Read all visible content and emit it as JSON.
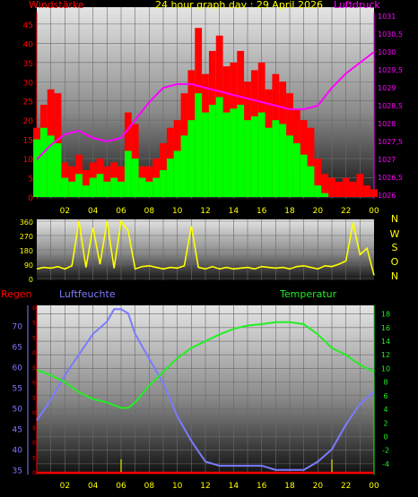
{
  "header": {
    "left_label": "Windstärke",
    "title": "24 hour graph day : 29 April 2026",
    "right_label": "Luftdruck"
  },
  "colors": {
    "background": "#000000",
    "wind_gust": "#ff0000",
    "wind_avg": "#00ff00",
    "pressure": "#ff00ff",
    "direction": "#ffff00",
    "humidity": "#7b7bff",
    "temperature": "#22ee22",
    "rain": "#ff0000",
    "rain_ticks": "#cccc00"
  },
  "chart_data": [
    {
      "type": "bar",
      "panel": "wind_pressure",
      "xlabel": "",
      "x_ticks": [
        "02",
        "04",
        "06",
        "08",
        "10",
        "12",
        "14",
        "16",
        "18",
        "20",
        "22",
        "00"
      ],
      "left_axis": {
        "label": "Windstärke",
        "ticks": [
          0,
          5,
          10,
          15,
          20,
          25,
          30,
          35,
          40,
          45
        ],
        "ylim": [
          0,
          48
        ]
      },
      "right_axis": {
        "label": "Luftdruck",
        "ticks": [
          "1026",
          "1026,5",
          "1027",
          "1027,5",
          "1028",
          "1028,5",
          "1029",
          "1029,5",
          "1030",
          "1030,5",
          "1031"
        ],
        "ylim": [
          1025.95,
          1031.1
        ]
      },
      "series": [
        {
          "kind": "gust",
          "x": [
            0,
            0.5,
            1,
            1.5,
            2,
            2.5,
            3,
            3.5,
            4,
            4.5,
            5,
            5.5,
            6,
            6.5,
            7,
            7.5,
            8,
            8.5,
            9,
            9.5,
            10,
            10.5,
            11,
            11.5,
            12,
            12.5,
            13,
            13.5,
            14,
            14.5,
            15,
            15.5,
            16,
            16.5,
            17,
            17.5,
            18,
            18.5,
            19,
            19.5,
            20,
            20.5,
            21,
            21.5,
            22,
            22.5,
            23,
            23.5,
            24
          ],
          "values": [
            18,
            24,
            28,
            27,
            9,
            8,
            11,
            7,
            9,
            10,
            8,
            9,
            8,
            22,
            19,
            8,
            8,
            10,
            14,
            18,
            20,
            27,
            33,
            44,
            32,
            38,
            42,
            34,
            35,
            38,
            30,
            33,
            35,
            28,
            32,
            30,
            27,
            23,
            20,
            18,
            10,
            6,
            5,
            4,
            5,
            4,
            6,
            3,
            2
          ]
        },
        {
          "kind": "average",
          "x": [
            0,
            0.5,
            1,
            1.5,
            2,
            2.5,
            3,
            3.5,
            4,
            4.5,
            5,
            5.5,
            6,
            6.5,
            7,
            7.5,
            8,
            8.5,
            9,
            9.5,
            10,
            10.5,
            11,
            11.5,
            12,
            12.5,
            13,
            13.5,
            14,
            14.5,
            15,
            15.5,
            16,
            16.5,
            17,
            17.5,
            18,
            18.5,
            19,
            19.5,
            20,
            20.5,
            21,
            21.5,
            22,
            22.5,
            23,
            23.5,
            24
          ],
          "values": [
            15,
            18,
            16,
            14,
            5,
            4,
            6,
            3,
            5,
            6,
            4,
            5,
            4,
            12,
            10,
            5,
            4,
            5,
            7,
            10,
            12,
            16,
            20,
            27,
            22,
            24,
            26,
            22,
            23,
            24,
            20,
            21,
            22,
            18,
            20,
            19,
            16,
            14,
            11,
            8,
            3,
            1,
            0,
            0,
            0,
            0,
            0,
            0,
            0
          ]
        },
        {
          "kind": "pressure",
          "x": [
            0,
            1,
            2,
            3,
            4,
            5,
            6,
            7,
            8,
            9,
            10,
            11,
            12,
            13,
            14,
            15,
            16,
            17,
            18,
            19,
            20,
            21,
            22,
            23,
            24
          ],
          "values": [
            1027.0,
            1027.4,
            1027.7,
            1027.8,
            1027.6,
            1027.5,
            1027.6,
            1028.1,
            1028.6,
            1029.0,
            1029.1,
            1029.1,
            1029.0,
            1028.9,
            1028.8,
            1028.7,
            1028.6,
            1028.5,
            1028.4,
            1028.4,
            1028.5,
            1029.0,
            1029.4,
            1029.7,
            1030.0
          ]
        }
      ]
    },
    {
      "type": "line",
      "panel": "wind_direction",
      "x_ticks": [],
      "left_axis": {
        "ticks": [
          0,
          90,
          180,
          270,
          360
        ],
        "ylim": [
          0,
          360
        ]
      },
      "right_labels": [
        "N",
        "W",
        "S",
        "O",
        "N"
      ],
      "x": [
        0,
        0.5,
        1,
        1.5,
        2,
        2.5,
        3,
        3.5,
        4,
        4.5,
        5,
        5.5,
        6,
        6.5,
        7,
        7.5,
        8,
        8.5,
        9,
        9.5,
        10,
        10.5,
        11,
        11.5,
        12,
        12.5,
        13,
        13.5,
        14,
        14.5,
        15,
        15.5,
        16,
        16.5,
        17,
        17.5,
        18,
        18.5,
        19,
        19.5,
        20,
        20.5,
        21,
        21.5,
        22,
        22.5,
        23,
        23.5,
        24
      ],
      "values": [
        60,
        70,
        65,
        75,
        60,
        80,
        360,
        70,
        320,
        90,
        360,
        65,
        360,
        300,
        60,
        75,
        80,
        70,
        60,
        70,
        65,
        80,
        330,
        70,
        60,
        75,
        60,
        70,
        60,
        65,
        70,
        60,
        75,
        70,
        65,
        70,
        60,
        75,
        80,
        70,
        60,
        80,
        75,
        90,
        110,
        350,
        150,
        190,
        20
      ]
    },
    {
      "type": "line",
      "panel": "humidity_temperature",
      "x_ticks": [
        "02",
        "04",
        "06",
        "08",
        "10",
        "12",
        "14",
        "16",
        "18",
        "20",
        "22",
        "00"
      ],
      "left_axis": {
        "label": "Regen",
        "ticks": [],
        "ylim": [
          0,
          1
        ]
      },
      "humidity_axis": {
        "label": "Luftfeuchte",
        "ticks": [
          35,
          40,
          45,
          50,
          55,
          60,
          65,
          70
        ],
        "ylim": [
          34.5,
          74.5
        ]
      },
      "right_axis": {
        "label": "Temperatur",
        "ticks": [
          -4,
          -2,
          0,
          2,
          4,
          6,
          8,
          10,
          12,
          14,
          16,
          18
        ],
        "ylim": [
          -5.2,
          19
        ]
      },
      "left_edge_ticks": [
        "0",
        "5",
        "5",
        "0",
        "5",
        "0",
        "5",
        "0",
        "5",
        "0",
        "5",
        "0"
      ],
      "series": [
        {
          "kind": "humidity",
          "x": [
            0,
            1,
            2,
            3,
            4,
            5,
            5.5,
            6,
            6.5,
            7,
            8,
            9,
            10,
            11,
            12,
            13,
            14,
            15,
            16,
            17,
            18,
            19,
            20,
            21,
            22,
            23,
            24
          ],
          "values": [
            47,
            52,
            58,
            63,
            68,
            71,
            74,
            74,
            73,
            68,
            62,
            56,
            48,
            42,
            37,
            36,
            36,
            36,
            36,
            35,
            35,
            35,
            37,
            40,
            46,
            51,
            54
          ]
        },
        {
          "kind": "temperature",
          "x": [
            0,
            1,
            2,
            3,
            4,
            5,
            6,
            6.5,
            7,
            8,
            9,
            10,
            11,
            12,
            13,
            14,
            15,
            16,
            17,
            18,
            19,
            20,
            21,
            22,
            23,
            24
          ],
          "values": [
            9.8,
            9,
            8,
            6.5,
            5.5,
            5,
            4.2,
            4.2,
            5,
            7.5,
            9.5,
            11.5,
            13,
            14,
            15,
            15.8,
            16.3,
            16.5,
            16.8,
            16.8,
            16.5,
            15,
            13,
            12,
            10.5,
            9.5
          ]
        },
        {
          "kind": "rain",
          "x": [
            0,
            24
          ],
          "values": [
            0,
            0
          ]
        }
      ]
    }
  ]
}
